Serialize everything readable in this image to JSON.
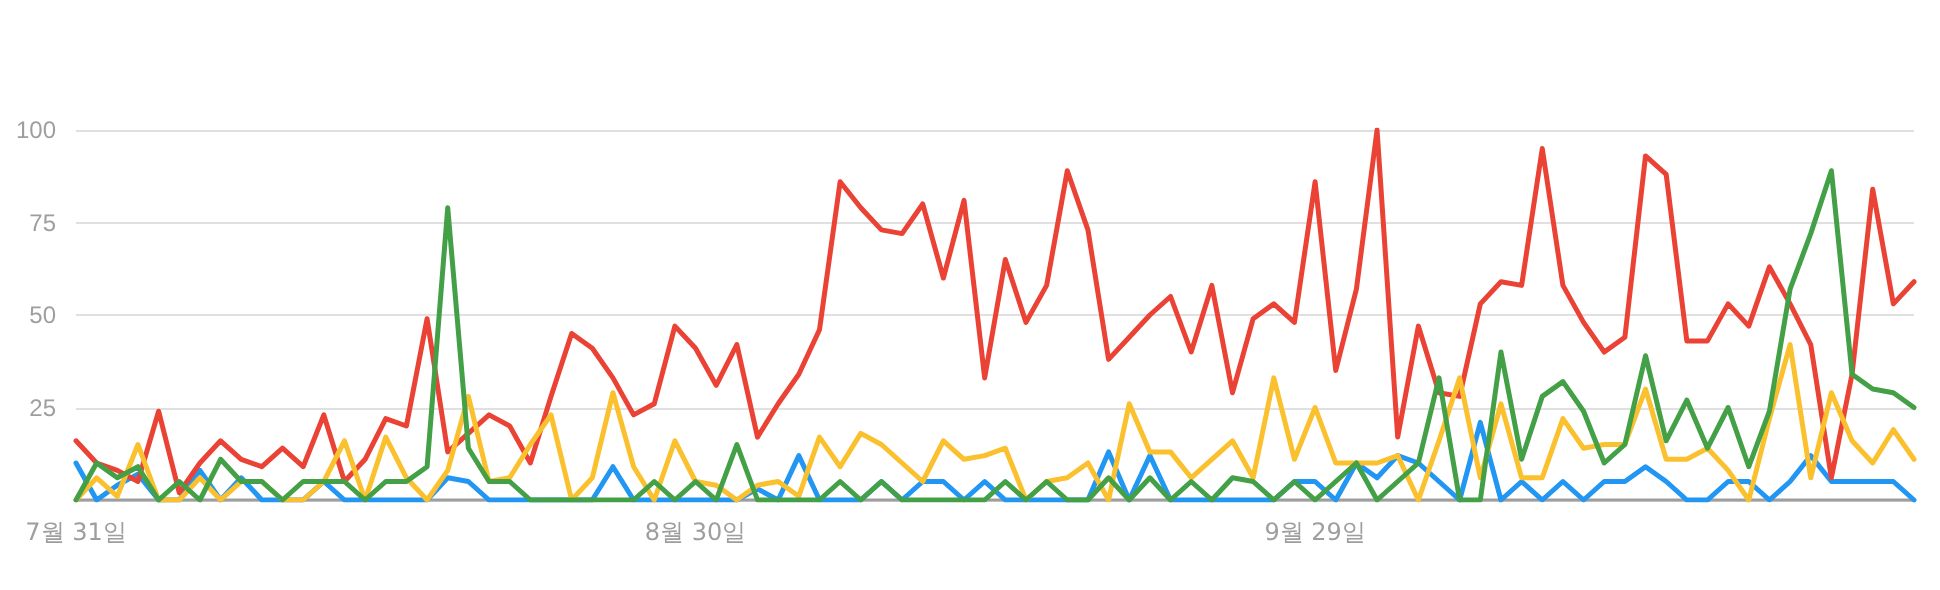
{
  "chart_data": {
    "type": "line",
    "categories": [
      "7월 31일",
      null,
      null,
      null,
      null,
      null,
      null,
      null,
      null,
      null,
      null,
      null,
      null,
      null,
      null,
      null,
      null,
      null,
      null,
      null,
      null,
      null,
      null,
      null,
      null,
      null,
      null,
      null,
      null,
      null,
      "8월 30일",
      null,
      null,
      null,
      null,
      null,
      null,
      null,
      null,
      null,
      null,
      null,
      null,
      null,
      null,
      null,
      null,
      null,
      null,
      null,
      null,
      null,
      null,
      null,
      null,
      null,
      null,
      null,
      null,
      null,
      "9월 29일",
      null,
      null,
      null,
      null,
      null,
      null,
      null,
      null,
      null,
      null,
      null,
      null,
      null,
      null,
      null,
      null,
      null,
      null,
      null,
      null,
      null,
      null,
      null,
      null,
      null,
      null,
      null,
      null,
      null
    ],
    "series": [
      {
        "color": "#2196f3",
        "values": [
          10,
          0,
          4,
          7,
          0,
          0,
          8,
          0,
          6,
          0,
          0,
          0,
          5,
          0,
          0,
          0,
          0,
          0,
          6,
          5,
          0,
          0,
          0,
          0,
          0,
          0,
          9,
          0,
          0,
          0,
          0,
          0,
          0,
          3,
          0,
          12,
          0,
          0,
          0,
          5,
          0,
          5,
          5,
          0,
          5,
          0,
          0,
          0,
          0,
          0,
          13,
          0,
          12,
          0,
          0,
          0,
          0,
          0,
          0,
          5,
          5,
          0,
          10,
          6,
          12,
          10,
          5,
          0,
          21,
          0,
          5,
          0,
          5,
          0,
          5,
          5,
          9,
          5,
          0,
          0,
          5,
          5,
          0,
          5,
          12,
          5,
          5,
          5,
          5,
          0
        ]
      },
      {
        "color": "#ea4335",
        "values": [
          16,
          10,
          8,
          5,
          24,
          2,
          10,
          16,
          11,
          9,
          14,
          9,
          23,
          5,
          11,
          22,
          20,
          49,
          13,
          18,
          23,
          20,
          10,
          28,
          45,
          41,
          33,
          23,
          26,
          47,
          41,
          31,
          42,
          17,
          26,
          34,
          46,
          86,
          79,
          73,
          72,
          80,
          60,
          81,
          33,
          65,
          48,
          58,
          89,
          73,
          38,
          44,
          50,
          55,
          40,
          58,
          29,
          49,
          53,
          48,
          86,
          35,
          57,
          100,
          17,
          47,
          29,
          28,
          53,
          59,
          58,
          95,
          58,
          48,
          40,
          44,
          93,
          88,
          43,
          43,
          53,
          47,
          63,
          53,
          42,
          6,
          34,
          84,
          53,
          59
        ]
      },
      {
        "color": "#fbc02d",
        "values": [
          0,
          6,
          1,
          15,
          0,
          0,
          6,
          0,
          5,
          5,
          0,
          0,
          5,
          16,
          0,
          17,
          6,
          0,
          8,
          28,
          5,
          6,
          15,
          23,
          0,
          6,
          29,
          9,
          0,
          16,
          5,
          4,
          0,
          4,
          5,
          1,
          17,
          9,
          18,
          15,
          10,
          5,
          16,
          11,
          12,
          14,
          0,
          5,
          6,
          10,
          0,
          26,
          13,
          13,
          6,
          11,
          16,
          6,
          33,
          11,
          25,
          10,
          10,
          10,
          12,
          0,
          16,
          33,
          6,
          26,
          6,
          6,
          22,
          14,
          15,
          15,
          30,
          11,
          11,
          14,
          8,
          0,
          22,
          42,
          6,
          29,
          16,
          10,
          19,
          11
        ]
      },
      {
        "color": "#43a047",
        "values": [
          0,
          10,
          6,
          9,
          0,
          5,
          0,
          11,
          5,
          5,
          0,
          5,
          5,
          5,
          0,
          5,
          5,
          9,
          79,
          14,
          5,
          5,
          0,
          0,
          0,
          0,
          0,
          0,
          5,
          0,
          5,
          0,
          15,
          0,
          0,
          0,
          0,
          5,
          0,
          5,
          0,
          0,
          0,
          0,
          0,
          5,
          0,
          5,
          0,
          0,
          6,
          0,
          6,
          0,
          5,
          0,
          6,
          5,
          0,
          5,
          0,
          5,
          10,
          0,
          5,
          10,
          33,
          0,
          0,
          40,
          11,
          28,
          32,
          24,
          10,
          15,
          39,
          16,
          27,
          14,
          25,
          9,
          24,
          57,
          72,
          89,
          34,
          30,
          29,
          25
        ]
      }
    ],
    "ylim": [
      0,
      100
    ],
    "yticks": [
      {
        "value": 0,
        "label": null
      },
      25,
      50,
      75,
      100
    ],
    "grid": "y",
    "marker": "none",
    "line_style": "solid"
  }
}
